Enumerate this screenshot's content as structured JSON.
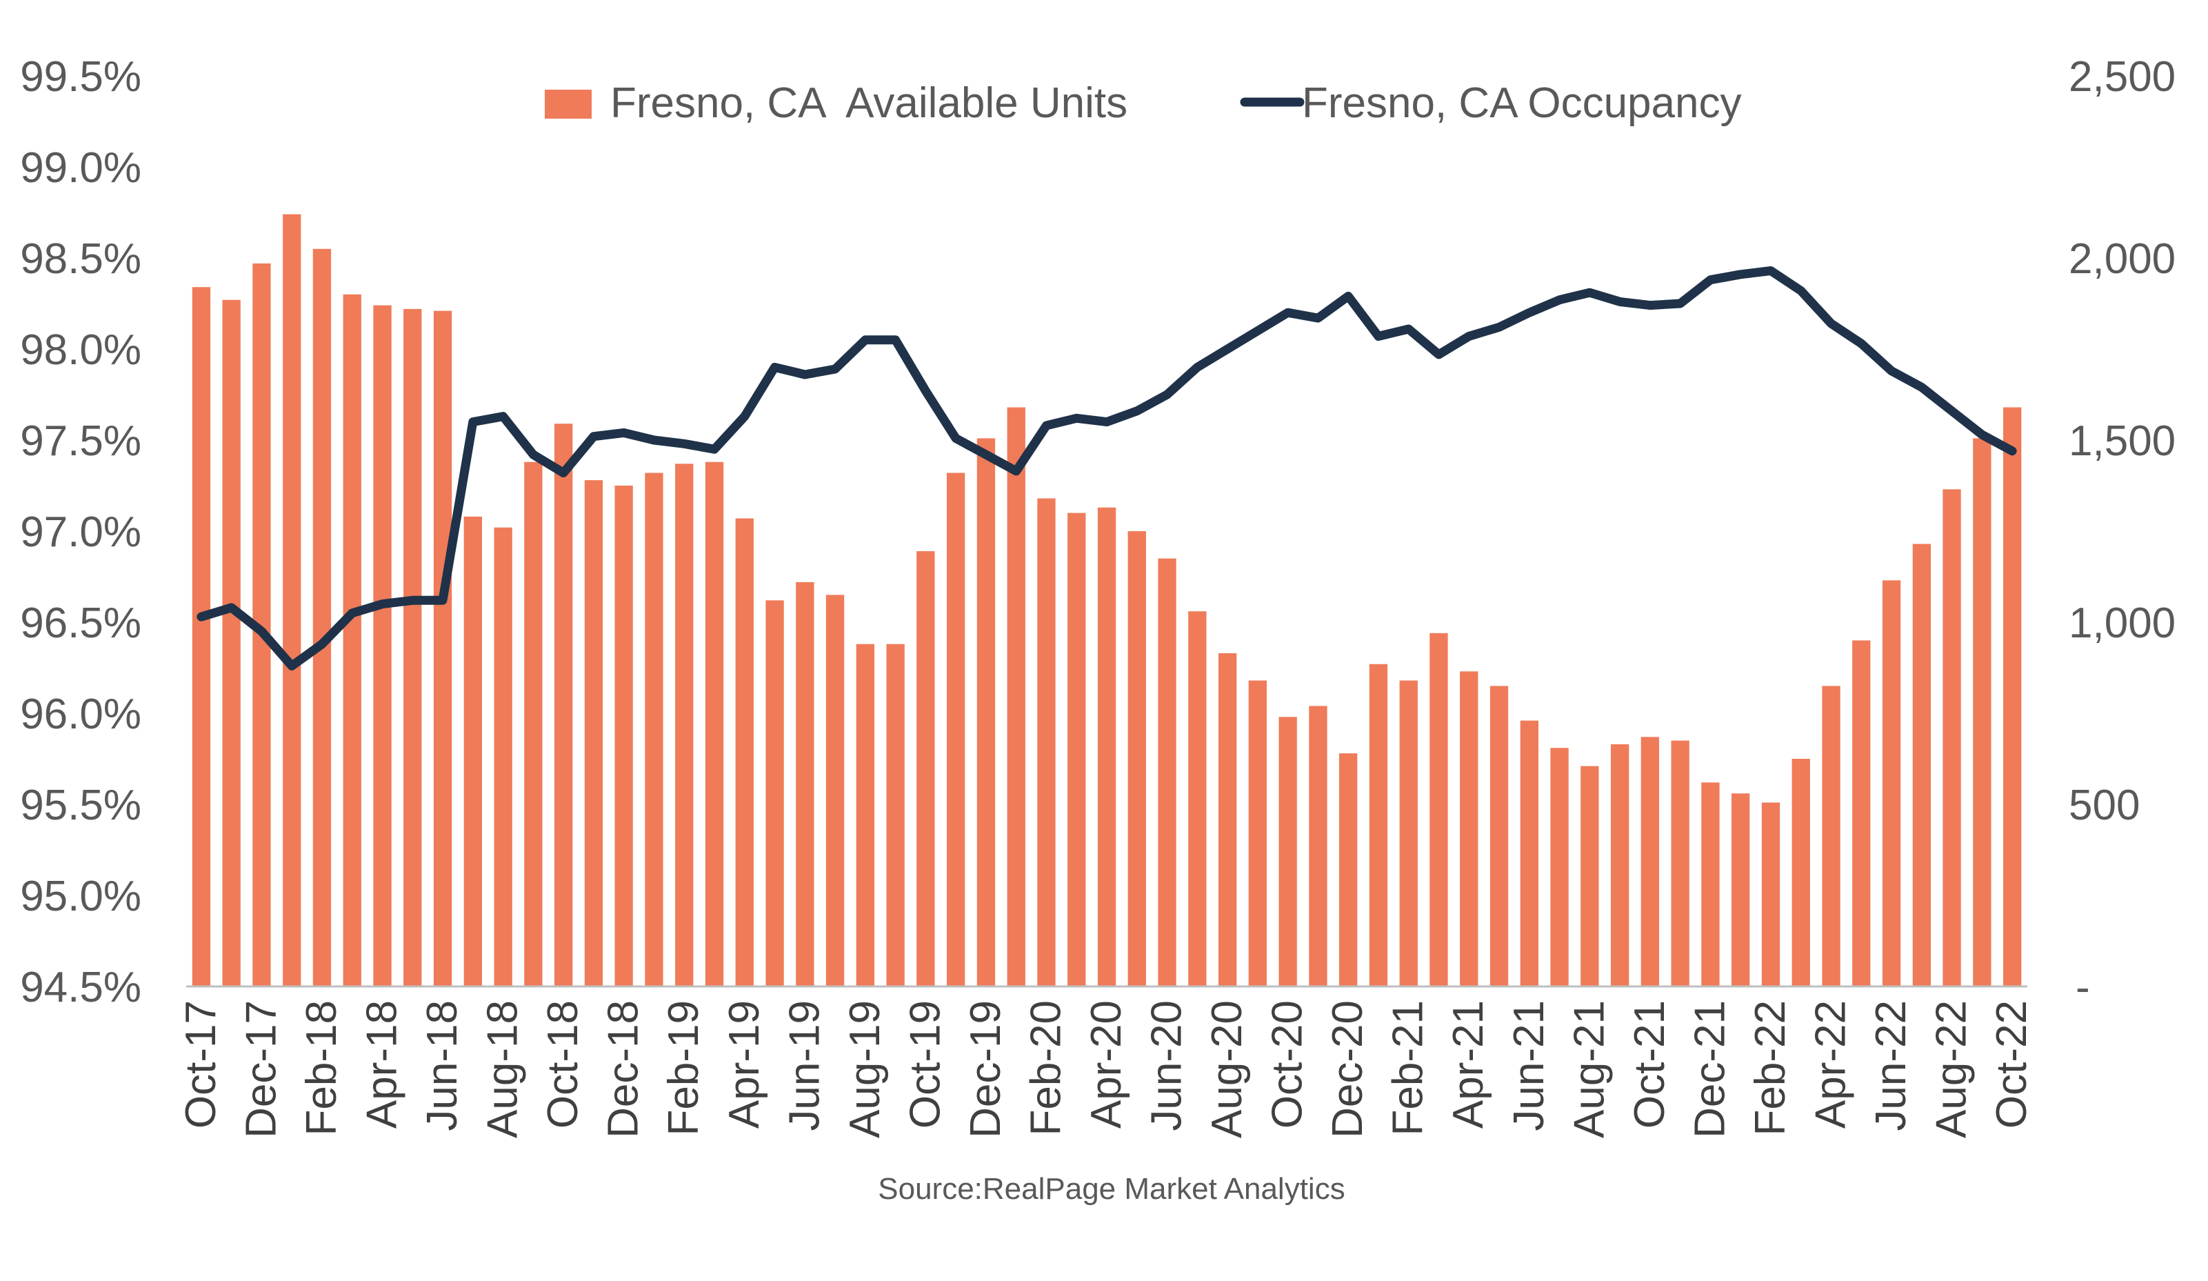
{
  "chart_data": {
    "type": "bar+line",
    "categories": [
      "Oct-17",
      "Nov-17",
      "Dec-17",
      "Jan-18",
      "Feb-18",
      "Mar-18",
      "Apr-18",
      "May-18",
      "Jun-18",
      "Jul-18",
      "Aug-18",
      "Sep-18",
      "Oct-18",
      "Nov-18",
      "Dec-18",
      "Jan-19",
      "Feb-19",
      "Mar-19",
      "Apr-19",
      "May-19",
      "Jun-19",
      "Jul-19",
      "Aug-19",
      "Sep-19",
      "Oct-19",
      "Nov-19",
      "Dec-19",
      "Jan-20",
      "Feb-20",
      "Mar-20",
      "Apr-20",
      "May-20",
      "Jun-20",
      "Jul-20",
      "Aug-20",
      "Sep-20",
      "Oct-20",
      "Nov-20",
      "Dec-20",
      "Jan-21",
      "Feb-21",
      "Mar-21",
      "Apr-21",
      "May-21",
      "Jun-21",
      "Jul-21",
      "Aug-21",
      "Sep-21",
      "Oct-21",
      "Nov-21",
      "Dec-21",
      "Jan-22",
      "Feb-22",
      "Mar-22",
      "Apr-22",
      "May-22",
      "Jun-22",
      "Jul-22",
      "Aug-22",
      "Sep-22",
      "Oct-22"
    ],
    "x_tick_labels": [
      "Oct-17",
      "Dec-17",
      "Feb-18",
      "Apr-18",
      "Jun-18",
      "Aug-18",
      "Oct-18",
      "Dec-18",
      "Feb-19",
      "Apr-19",
      "Jun-19",
      "Aug-19",
      "Oct-19",
      "Dec-19",
      "Feb-20",
      "Apr-20",
      "Jun-20",
      "Aug-20",
      "Oct-20",
      "Dec-20",
      "Feb-21",
      "Apr-21",
      "Jun-21",
      "Aug-21",
      "Oct-21",
      "Dec-21",
      "Feb-22",
      "Apr-22",
      "Jun-22",
      "Aug-22",
      "Oct-22"
    ],
    "series": [
      {
        "name": "Fresno, CA  Available Units",
        "type": "bar",
        "axis": "right",
        "color": "#ef7b59",
        "values": [
          1920,
          1885,
          1985,
          2120,
          2025,
          1900,
          1870,
          1860,
          1855,
          1290,
          1260,
          1440,
          1545,
          1390,
          1375,
          1410,
          1435,
          1440,
          1285,
          1060,
          1110,
          1075,
          940,
          940,
          1195,
          1410,
          1505,
          1590,
          1340,
          1300,
          1315,
          1250,
          1175,
          1030,
          915,
          840,
          740,
          770,
          640,
          885,
          840,
          970,
          865,
          825,
          730,
          655,
          605,
          665,
          685,
          675,
          560,
          530,
          505,
          625,
          825,
          950,
          1115,
          1215,
          1365,
          1505,
          1590
        ]
      },
      {
        "name": "Fresno, CA Occupancy",
        "type": "line",
        "axis": "left",
        "color": "#1f3249",
        "values": [
          96.53,
          96.58,
          96.45,
          96.26,
          96.38,
          96.55,
          96.6,
          96.62,
          96.62,
          97.6,
          97.63,
          97.42,
          97.32,
          97.52,
          97.54,
          97.5,
          97.48,
          97.45,
          97.63,
          97.9,
          97.86,
          97.89,
          98.05,
          98.05,
          97.77,
          97.51,
          97.42,
          97.33,
          97.58,
          97.62,
          97.6,
          97.66,
          97.75,
          97.9,
          98.0,
          98.1,
          98.2,
          98.17,
          98.29,
          98.07,
          98.11,
          97.97,
          98.07,
          98.12,
          98.2,
          98.27,
          98.31,
          98.26,
          98.24,
          98.25,
          98.38,
          98.41,
          98.43,
          98.32,
          98.14,
          98.03,
          97.88,
          97.79,
          97.66,
          97.53,
          97.44
        ]
      }
    ],
    "y_left": {
      "min": 94.5,
      "max": 99.5,
      "ticks": [
        "94.5%",
        "95.0%",
        "95.5%",
        "96.0%",
        "96.5%",
        "97.0%",
        "97.5%",
        "98.0%",
        "98.5%",
        "99.0%",
        "99.5%"
      ]
    },
    "y_right": {
      "min": 0,
      "max": 2500,
      "ticks": [
        "-",
        "500",
        "1,000",
        "1,500",
        "2,000",
        "2,500"
      ]
    },
    "legend_position": "top-center",
    "grid": false,
    "source": "Source:RealPage Market Analytics"
  }
}
